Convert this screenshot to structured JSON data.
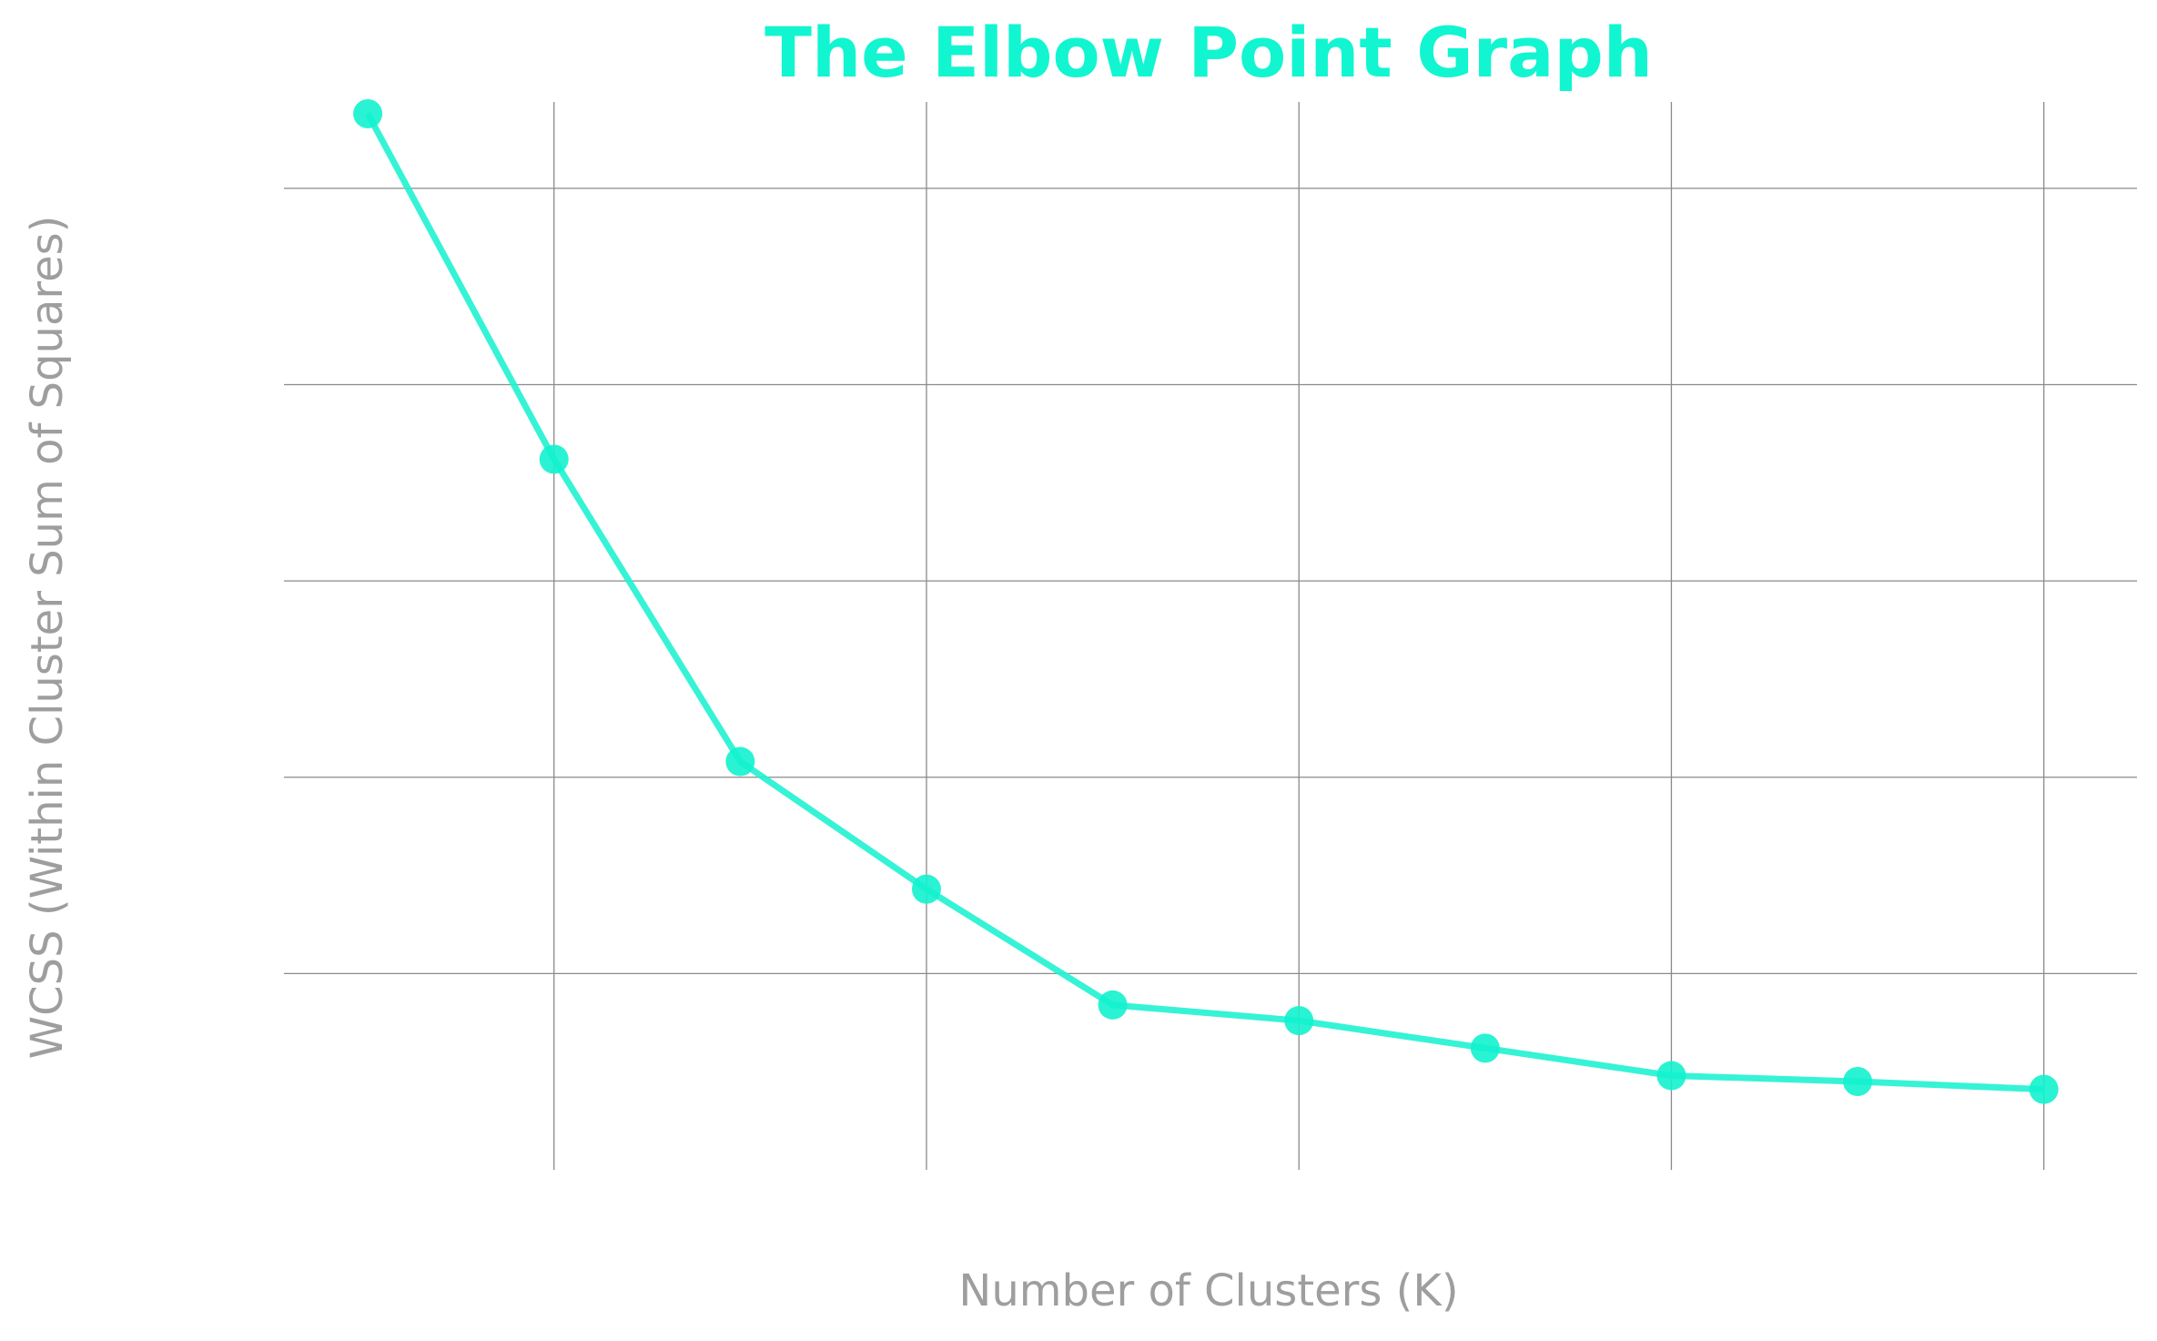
{
  "chart_data": {
    "type": "line",
    "title": "The Elbow Point Graph",
    "xlabel": "Number of Clusters (K)",
    "ylabel": "WCSS (Within Cluster Sum of Squares)",
    "x": [
      1,
      2,
      3,
      4,
      5,
      6,
      7,
      8,
      9,
      10
    ],
    "series": [
      {
        "values": [
          269000,
          181000,
          104000,
          71500,
          42000,
          38000,
          31000,
          24000,
          22500,
          20500
        ]
      }
    ],
    "xlim": [
      0.55,
      10.5
    ],
    "ylim": [
      0,
      272000
    ],
    "x_gridlines": [
      2,
      4,
      6,
      8,
      10
    ],
    "y_gridlines": [
      50000,
      100000,
      150000,
      200000,
      250000
    ],
    "tick_labels_visible": false,
    "grid": true,
    "colors": {
      "title": "#12F5D1",
      "line": "#20F2D2",
      "marker": "#12F2CE",
      "grid": "#8a8a8a",
      "axis_label": "#9e9e9e"
    }
  }
}
